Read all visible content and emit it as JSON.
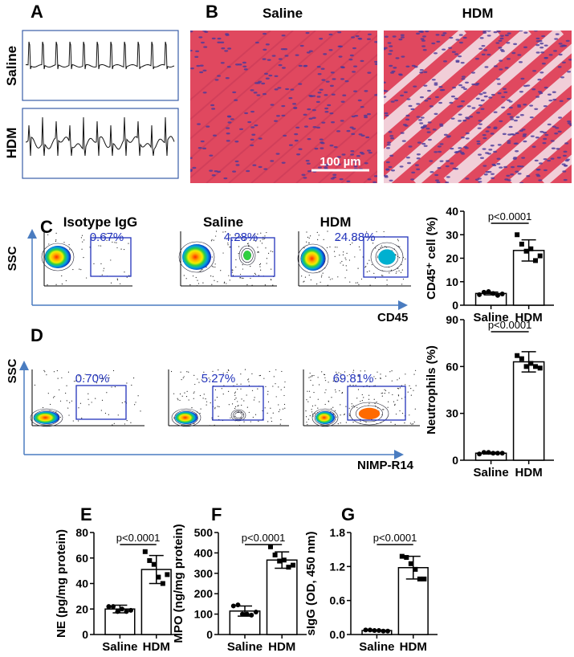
{
  "panels": {
    "A": {
      "label": "A",
      "rows": [
        "Saline",
        "HDM"
      ]
    },
    "B": {
      "label": "B",
      "titles": [
        "Saline",
        "HDM"
      ],
      "scale_bar": "100 µm"
    },
    "C": {
      "label": "C",
      "titles": [
        "Isotype IgG",
        "Saline",
        "HDM"
      ],
      "percentages": [
        "0.67%",
        "4.28%",
        "24.88%"
      ],
      "y_axis": "SSC",
      "x_axis": "CD45"
    },
    "D": {
      "label": "D",
      "titles": [
        "",
        "",
        ""
      ],
      "percentages": [
        "0.70%",
        "5.27%",
        "69.81%"
      ],
      "y_axis": "SSC",
      "x_axis": "NIMP-R14"
    },
    "E": {
      "label": "E"
    },
    "F": {
      "label": "F"
    },
    "G": {
      "label": "G"
    }
  },
  "colors": {
    "gate": "#2233bb",
    "axis_arrow": "#4a7cc0",
    "tissue": "#e0485f",
    "nuclei": "#4a3a9a",
    "trace_border": "#3a5ea8"
  },
  "chart_data": [
    {
      "id": "C",
      "type": "bar",
      "categories": [
        "Saline",
        "HDM"
      ],
      "ylabel": "CD45⁺ cell (%)",
      "ylim": [
        0,
        40
      ],
      "yticks": [
        "0",
        "10",
        "20",
        "30",
        "40"
      ],
      "means": [
        5,
        23.3
      ],
      "sd": [
        0.6,
        4.5
      ],
      "points": [
        [
          4.5,
          5.5,
          5.8,
          5.0,
          4.2,
          4.8
        ],
        [
          30,
          26,
          23,
          24,
          19,
          21
        ]
      ],
      "annotation": "p<0.0001"
    },
    {
      "id": "D",
      "type": "bar",
      "categories": [
        "Saline",
        "HDM"
      ],
      "ylabel": "Neutrophils (%)",
      "ylim": [
        0,
        90
      ],
      "yticks": [
        "0",
        "30",
        "60",
        "90"
      ],
      "means": [
        4.5,
        63
      ],
      "sd": [
        0.5,
        6.5
      ],
      "points": [
        [
          4,
          5,
          5,
          4.5,
          4.5,
          4.5
        ],
        [
          67,
          65,
          60,
          62,
          60,
          59
        ]
      ],
      "annotation": "p<0.0001"
    },
    {
      "id": "E",
      "type": "bar",
      "categories": [
        "Saline",
        "HDM"
      ],
      "ylabel": "NE (pg/mg protein)",
      "ylim": [
        0,
        80
      ],
      "yticks": [
        "0",
        "20",
        "40",
        "60",
        "80"
      ],
      "means": [
        20,
        51
      ],
      "sd": [
        3,
        11
      ],
      "points": [
        [
          22,
          22,
          18,
          20,
          18,
          19
        ],
        [
          65,
          58,
          55,
          45,
          40,
          47
        ]
      ],
      "annotation": "p<0.0001"
    },
    {
      "id": "F",
      "type": "bar",
      "categories": [
        "Saline",
        "HDM"
      ],
      "ylabel": "MPO (ng/mg protein)",
      "ylim": [
        0,
        500
      ],
      "yticks": [
        "0",
        "100",
        "200",
        "300",
        "400",
        "500"
      ],
      "means": [
        115,
        365
      ],
      "sd": [
        25,
        40
      ],
      "points": [
        [
          140,
          145,
          100,
          100,
          95,
          110
        ],
        [
          430,
          390,
          360,
          365,
          330,
          340
        ]
      ],
      "annotation": "p<0.0001"
    },
    {
      "id": "G",
      "type": "bar",
      "categories": [
        "Saline",
        "HDM"
      ],
      "ylabel": "sIgG (OD, 450 nm)",
      "ylim": [
        0,
        1.8
      ],
      "yticks": [
        "0.0",
        "0.6",
        "1.2",
        "1.8"
      ],
      "means": [
        0.07,
        1.18
      ],
      "sd": [
        0.01,
        0.2
      ],
      "points": [
        [
          0.08,
          0.08,
          0.07,
          0.07,
          0.06,
          0.06
        ],
        [
          1.38,
          1.36,
          1.25,
          1.15,
          0.98,
          0.98
        ]
      ],
      "annotation": "p<0.0001"
    }
  ]
}
